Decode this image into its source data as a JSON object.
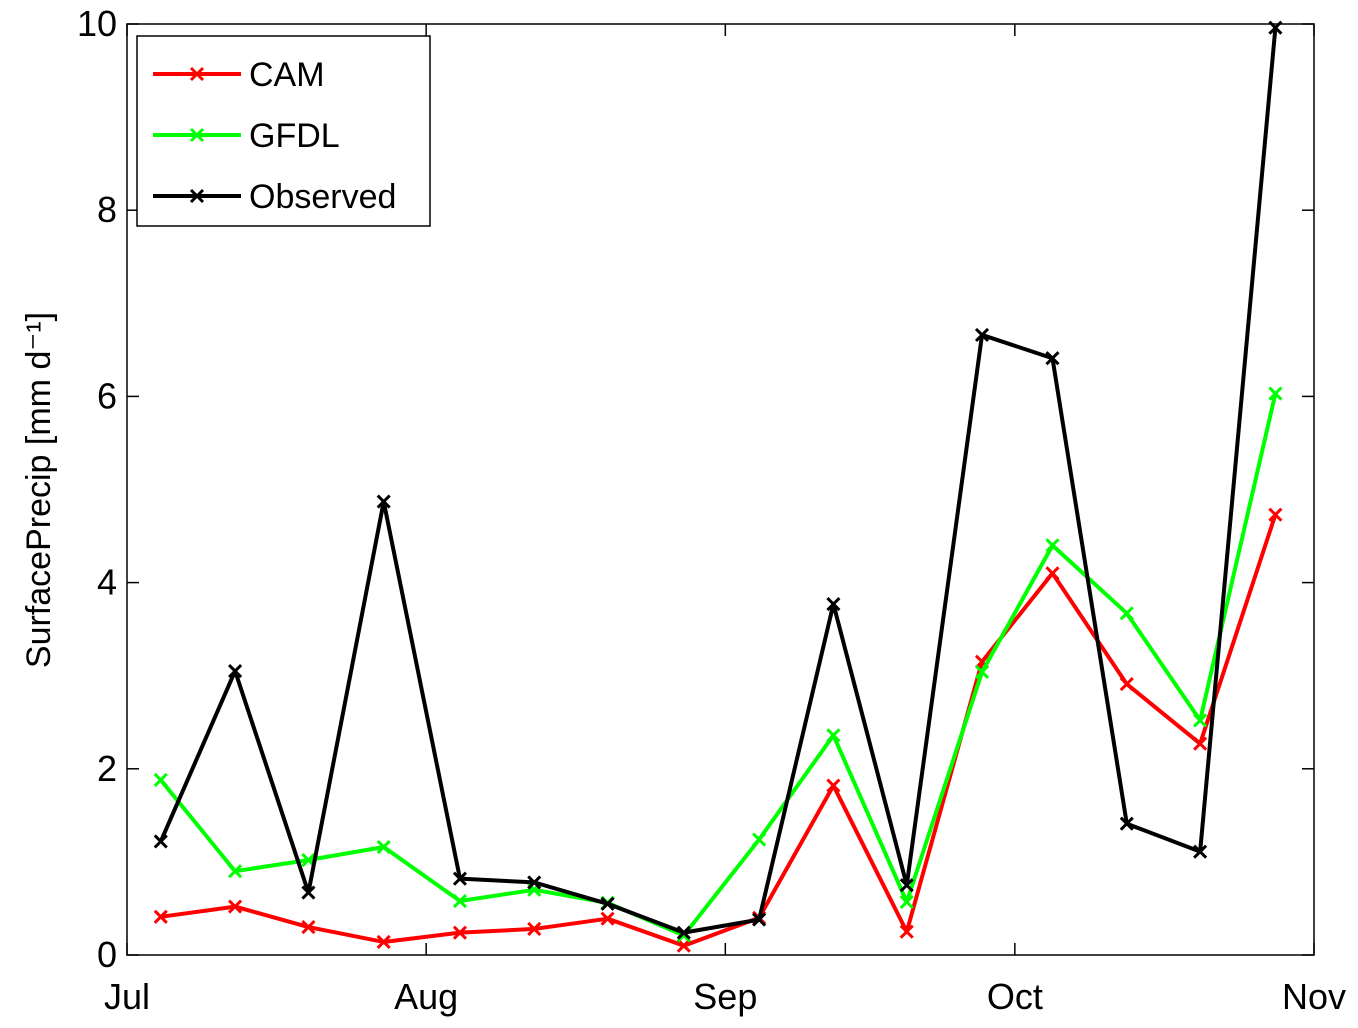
{
  "chart_data": {
    "type": "line",
    "ylabel": "SurfacePrecip [mm d⁻¹]",
    "x": [
      3.5,
      11.2,
      18.8,
      26.6,
      34.5,
      42.2,
      49.8,
      57.7,
      65.5,
      73.2,
      80.8,
      88.6,
      95.9,
      103.6,
      111.2,
      119
    ],
    "series": [
      {
        "name": "CAM",
        "color": "#ff0000",
        "values": [
          0.41,
          0.52,
          0.3,
          0.14,
          0.24,
          0.28,
          0.39,
          0.1,
          0.4,
          1.82,
          0.25,
          3.15,
          4.1,
          2.91,
          2.27,
          4.73
        ]
      },
      {
        "name": "GFDL",
        "color": "#00ff00",
        "values": [
          1.88,
          0.9,
          1.02,
          1.16,
          0.58,
          0.7,
          0.56,
          0.21,
          1.24,
          2.36,
          0.57,
          3.04,
          4.4,
          3.67,
          2.52,
          6.03
        ]
      },
      {
        "name": "Observed",
        "color": "#000000",
        "values": [
          1.22,
          3.05,
          0.67,
          4.87,
          0.82,
          0.78,
          0.55,
          0.24,
          0.38,
          3.77,
          0.75,
          6.66,
          6.41,
          1.41,
          1.11,
          9.96
        ]
      }
    ],
    "xlim": [
      0,
      123
    ],
    "xticks": [
      {
        "value": 0,
        "label": "Jul"
      },
      {
        "value": 31,
        "label": "Aug"
      },
      {
        "value": 62,
        "label": "Sep"
      },
      {
        "value": 92,
        "label": "Oct"
      },
      {
        "value": 123,
        "label": "Nov"
      }
    ],
    "ylim": [
      0,
      10
    ],
    "yticks": [
      0,
      2,
      4,
      6,
      8,
      10
    ],
    "grid": false,
    "legend": "upper-left"
  }
}
